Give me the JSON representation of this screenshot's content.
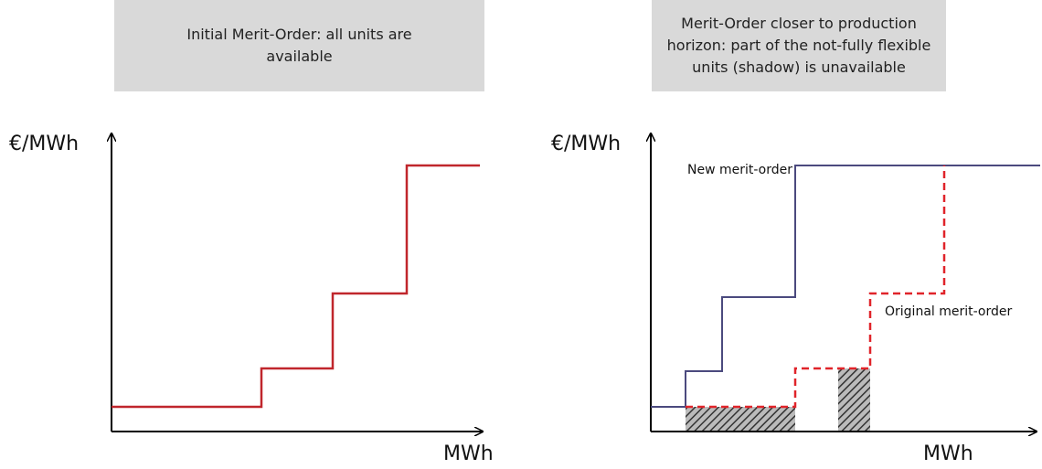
{
  "left": {
    "title": [
      "Initial Merit-Order: all units are",
      "available"
    ],
    "y_label": "€/MWh",
    "x_label": "MWh"
  },
  "right": {
    "title": [
      "Merit-Order closer to production",
      "horizon: part of the not-fully flexible",
      "units (shadow) is unavailable"
    ],
    "y_label": "€/MWh",
    "x_label": "MWh",
    "new_label": "New merit-order",
    "original_label": "Original merit-order"
  }
}
